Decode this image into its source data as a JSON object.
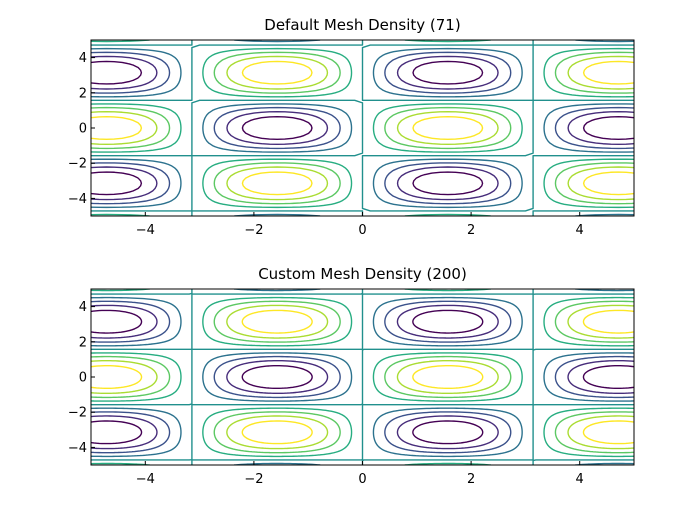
{
  "chart_data": [
    {
      "type": "contour",
      "title": "Default Mesh Density (71)",
      "function": "sin(x) * cos(y)",
      "xlim": [
        -5,
        5
      ],
      "ylim": [
        -5,
        5
      ],
      "xticks": [
        -4,
        -2,
        0,
        2,
        4
      ],
      "yticks": [
        -4,
        -2,
        0,
        2,
        4
      ],
      "levels": [
        -0.8,
        -0.6,
        -0.4,
        -0.2,
        0.0,
        0.2,
        0.4,
        0.6,
        0.8
      ],
      "colors": [
        "#440154",
        "#472d7b",
        "#3b528b",
        "#2c728e",
        "#21908d",
        "#27ad81",
        "#5cc863",
        "#aadc32",
        "#fde725"
      ],
      "mesh_points": 71
    },
    {
      "type": "contour",
      "title": "Custom Mesh Density (200)",
      "function": "sin(x) * cos(y)",
      "xlim": [
        -5,
        5
      ],
      "ylim": [
        -5,
        5
      ],
      "xticks": [
        -4,
        -2,
        0,
        2,
        4
      ],
      "yticks": [
        -4,
        -2,
        0,
        2,
        4
      ],
      "levels": [
        -0.8,
        -0.6,
        -0.4,
        -0.2,
        0.0,
        0.2,
        0.4,
        0.6,
        0.8
      ],
      "colors": [
        "#440154",
        "#472d7b",
        "#3b528b",
        "#2c728e",
        "#21908d",
        "#27ad81",
        "#5cc863",
        "#aadc32",
        "#fde725"
      ],
      "mesh_points": 200
    }
  ]
}
